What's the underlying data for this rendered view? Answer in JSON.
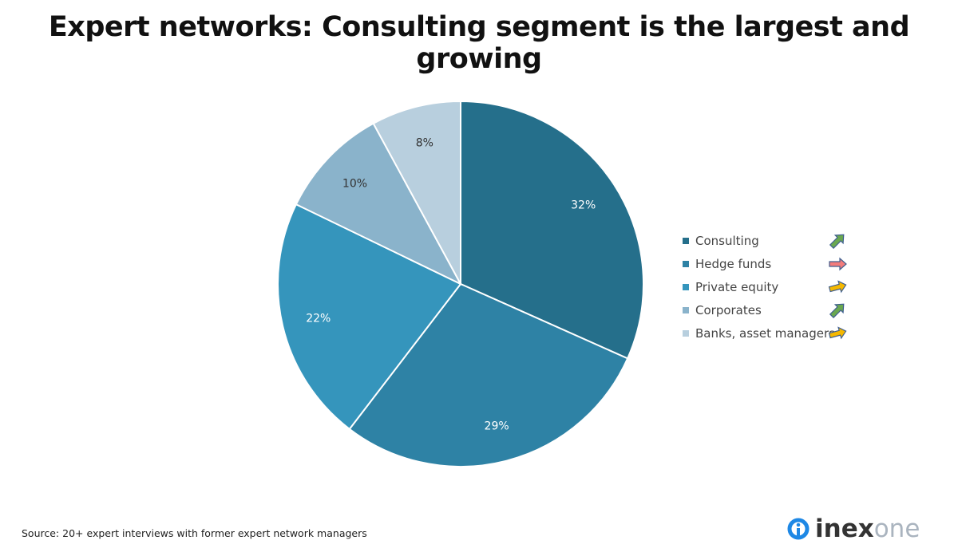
{
  "title": "Expert networks: Consulting segment is the largest and growing",
  "chart_data": {
    "type": "pie",
    "title": "Expert networks: Consulting segment is the largest and growing",
    "categories": [
      "Consulting",
      "Hedge funds",
      "Private equity",
      "Corporates",
      "Banks, asset managers"
    ],
    "values": [
      32,
      29,
      22,
      10,
      8
    ],
    "labels": [
      "32%",
      "29%",
      "22%",
      "10%",
      "8%"
    ],
    "colors": [
      "#256f8b",
      "#2e82a5",
      "#3595bc",
      "#8ab3cb",
      "#b8cfde"
    ],
    "label_colors": [
      "#ffffff",
      "#ffffff",
      "#ffffff",
      "#333333",
      "#333333"
    ],
    "trends": [
      "up",
      "flat",
      "slightly-up",
      "up",
      "slightly-up"
    ],
    "trend_colors": [
      "#6aa84f",
      "#f27c7c",
      "#f5b800",
      "#6aa84f",
      "#f5b800"
    ],
    "legend_position": "right"
  },
  "source": "Source: 20+ expert interviews with former expert network managers",
  "logo": {
    "part1": "inex",
    "part2": "one"
  }
}
